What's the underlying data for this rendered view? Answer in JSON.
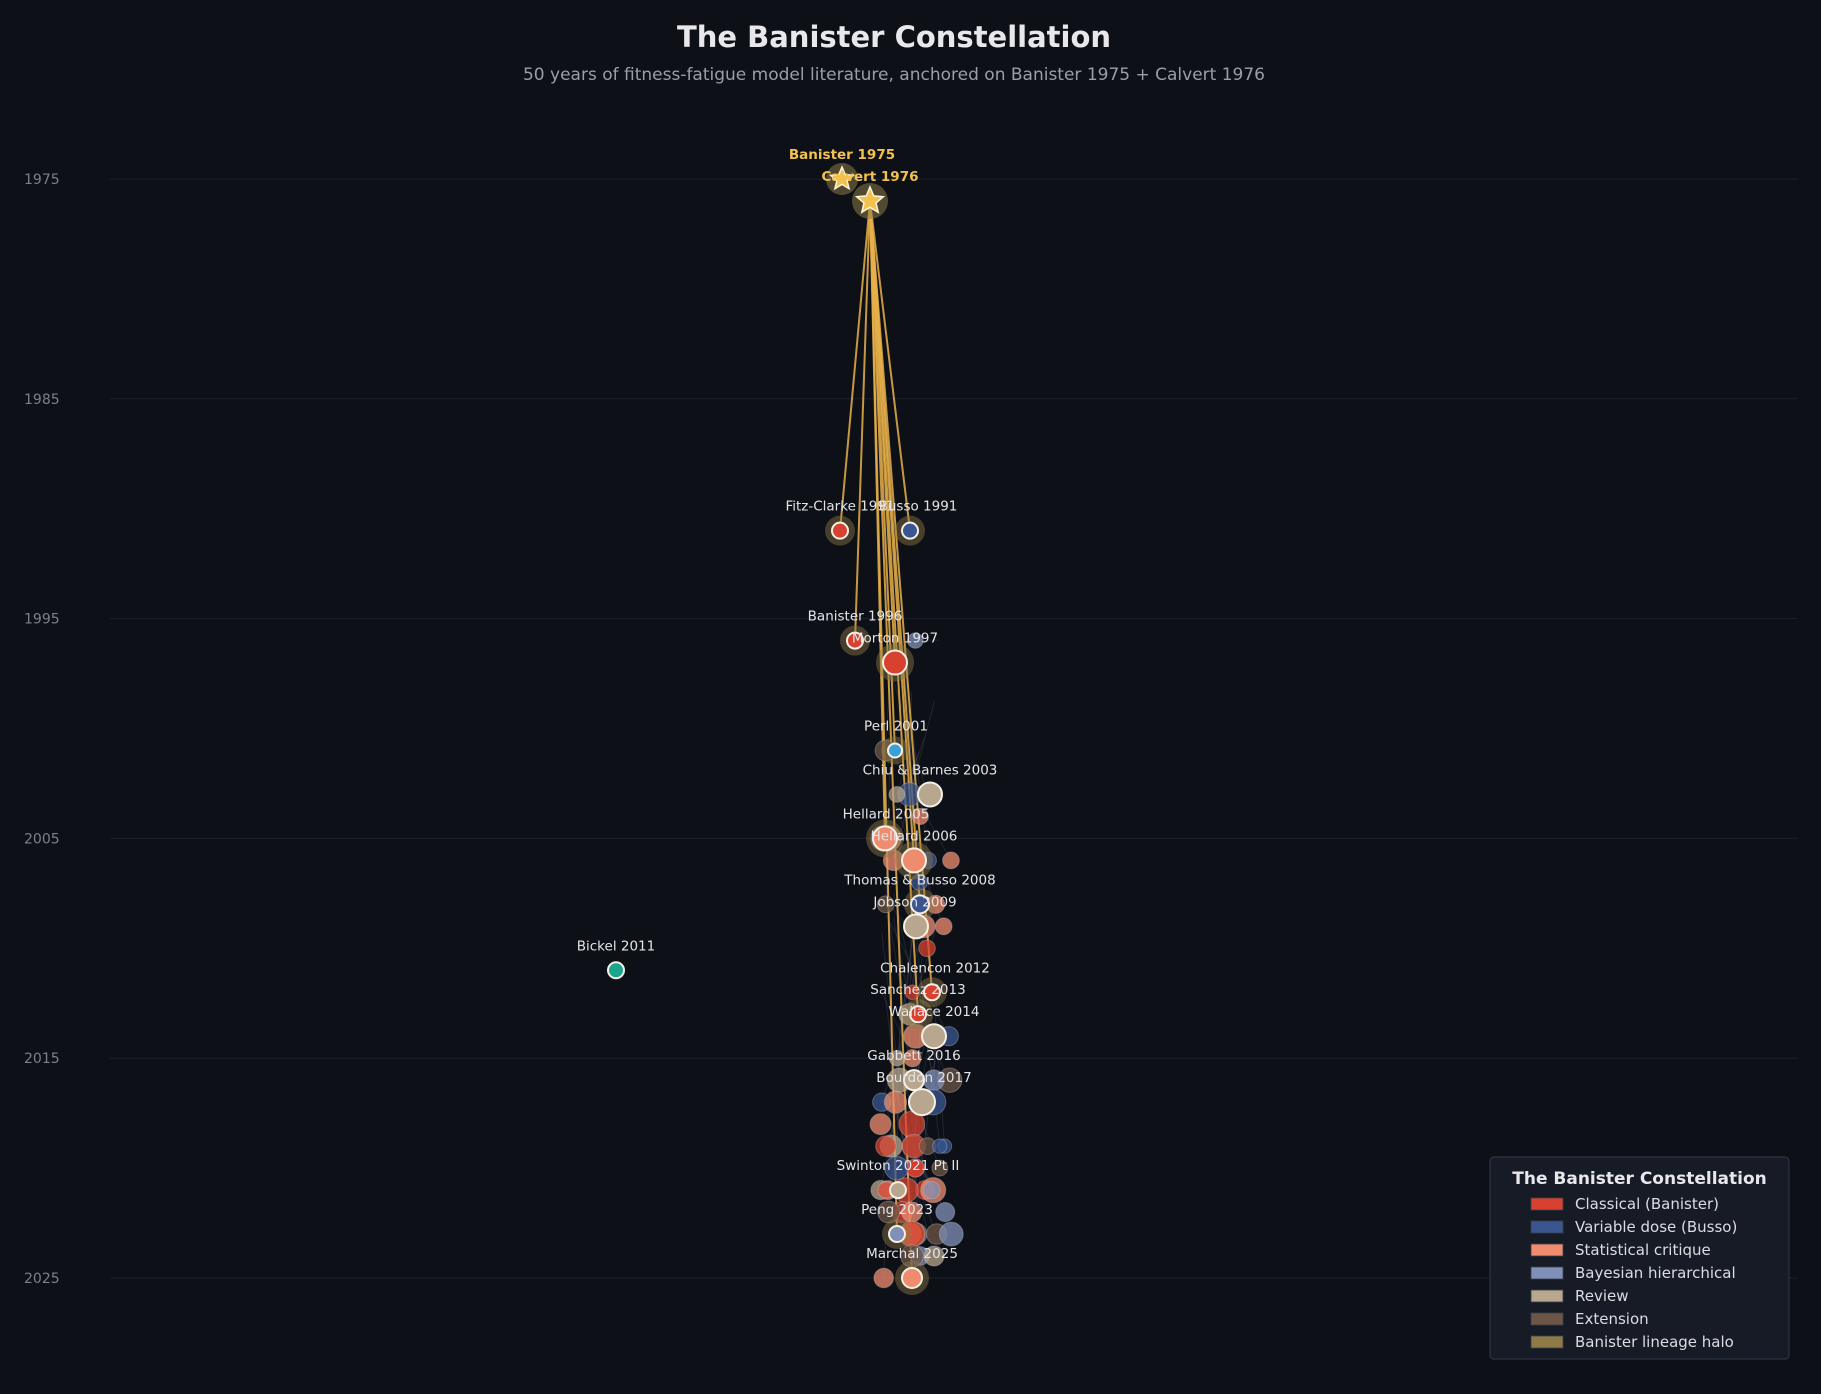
{
  "chart_data": {
    "type": "scatter",
    "title": "The Banister Constellation",
    "subtitle": "50 years of fitness-fatigue model literature, anchored on Banister 1975 + Calvert 1976",
    "xlabel": "",
    "ylabel": "",
    "ylim": [
      1971,
      2029
    ],
    "y_ticks": [
      "1975",
      "1985",
      "1995",
      "2005",
      "2015",
      "2025"
    ],
    "grid": true,
    "legend": {
      "title": "The Banister Constellation",
      "position": "bottom-right",
      "items": [
        {
          "label": "Classical (Banister)",
          "color": "#d8412f"
        },
        {
          "label": "Variable dose (Busso)",
          "color": "#3a5590"
        },
        {
          "label": "Statistical critique",
          "color": "#f08c6e"
        },
        {
          "label": "Bayesian hierarchical",
          "color": "#8090b8"
        },
        {
          "label": "Review",
          "color": "#b8a68e"
        },
        {
          "label": "Extension",
          "color": "#6e5646"
        },
        {
          "label": "Banister lineage halo",
          "color": "#8d7a46"
        }
      ]
    },
    "anchors": [
      {
        "label": "Banister 1975",
        "year": 1975
      },
      {
        "label": "Calvert 1976",
        "year": 1976
      }
    ],
    "labeled_papers": [
      {
        "label": "Fitz-Clarke 1991",
        "year": 1991,
        "category": "Classical (Banister)"
      },
      {
        "label": "Busso 1991",
        "year": 1991,
        "category": "Variable dose (Busso)"
      },
      {
        "label": "Banister 1996",
        "year": 1996,
        "category": "Classical (Banister)"
      },
      {
        "label": "Morton 1997",
        "year": 1997,
        "category": "Classical (Banister)"
      },
      {
        "label": "Perl 2001",
        "year": 2001,
        "category": "Extension"
      },
      {
        "label": "Chiu & Barnes 2003",
        "year": 2003,
        "category": "Review"
      },
      {
        "label": "Hellard 2005",
        "year": 2005,
        "category": "Statistical critique"
      },
      {
        "label": "Hellard 2006",
        "year": 2006,
        "category": "Statistical critique"
      },
      {
        "label": "Thomas & Busso 2008",
        "year": 2008,
        "category": "Variable dose (Busso)"
      },
      {
        "label": "Jobson 2009",
        "year": 2009,
        "category": "Review"
      },
      {
        "label": "Bickel 2011",
        "year": 2011,
        "category": "Extension"
      },
      {
        "label": "Chalencon 2012",
        "year": 2012,
        "category": "Classical (Banister)"
      },
      {
        "label": "Sanchez 2013",
        "year": 2013,
        "category": "Classical (Banister)"
      },
      {
        "label": "Wallace 2014",
        "year": 2014,
        "category": "Review"
      },
      {
        "label": "Gabbett 2016",
        "year": 2016,
        "category": "Review"
      },
      {
        "label": "Bourdon 2017",
        "year": 2017,
        "category": "Review"
      },
      {
        "label": "Swinton 2021 Pt II",
        "year": 2021,
        "category": "Review"
      },
      {
        "label": "Peng 2023",
        "year": 2023,
        "category": "Bayesian hierarchical"
      },
      {
        "label": "Marchal 2025",
        "year": 2025,
        "category": "Statistical critique"
      }
    ]
  }
}
